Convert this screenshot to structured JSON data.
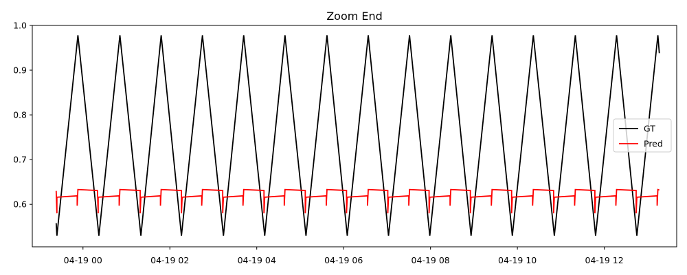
{
  "chart_data": {
    "type": "line",
    "title": "Zoom End",
    "xlabel": "",
    "ylabel": "",
    "x_axis_type": "time",
    "x_range": [
      "2024-04-18T22:50",
      "2024-04-19T13:40"
    ],
    "x_ticks": [
      {
        "time": "2024-04-19T00:00",
        "label": "04-19 00"
      },
      {
        "time": "2024-04-19T02:00",
        "label": "04-19 02"
      },
      {
        "time": "2024-04-19T04:00",
        "label": "04-19 04"
      },
      {
        "time": "2024-04-19T06:00",
        "label": "04-19 06"
      },
      {
        "time": "2024-04-19T08:00",
        "label": "04-19 08"
      },
      {
        "time": "2024-04-19T10:00",
        "label": "04-19 10"
      },
      {
        "time": "2024-04-19T12:00",
        "label": "04-19 12"
      }
    ],
    "ylim": [
      0.505,
      1.0
    ],
    "y_ticks": [
      {
        "value": 0.6,
        "label": "0.6"
      },
      {
        "value": 0.7,
        "label": "0.7"
      },
      {
        "value": 0.8,
        "label": "0.8"
      },
      {
        "value": 0.9,
        "label": "0.9"
      },
      {
        "value": 1.0,
        "label": "1.0"
      }
    ],
    "grid": false,
    "legend_position": "center-right",
    "series": [
      {
        "name": "GT",
        "color": "#000000",
        "points": [
          [
            "2024-04-18T23:23",
            0.558
          ],
          [
            "2024-04-18T23:24",
            0.53
          ],
          [
            "2024-04-18T23:53",
            0.978
          ],
          [
            "2024-04-19T00:22",
            0.53
          ],
          [
            "2024-04-19T00:51",
            0.978
          ],
          [
            "2024-04-19T01:20",
            0.53
          ],
          [
            "2024-04-19T01:48",
            0.978
          ],
          [
            "2024-04-19T02:16",
            0.53
          ],
          [
            "2024-04-19T02:45",
            0.978
          ],
          [
            "2024-04-19T03:14",
            0.53
          ],
          [
            "2024-04-19T03:42",
            0.978
          ],
          [
            "2024-04-19T04:11",
            0.53
          ],
          [
            "2024-04-19T04:39",
            0.978
          ],
          [
            "2024-04-19T05:08",
            0.53
          ],
          [
            "2024-04-19T05:37",
            0.978
          ],
          [
            "2024-04-19T06:05",
            0.53
          ],
          [
            "2024-04-19T06:34",
            0.978
          ],
          [
            "2024-04-19T07:02",
            0.53
          ],
          [
            "2024-04-19T07:31",
            0.978
          ],
          [
            "2024-04-19T07:59",
            0.53
          ],
          [
            "2024-04-19T08:28",
            0.978
          ],
          [
            "2024-04-19T08:56",
            0.53
          ],
          [
            "2024-04-19T09:25",
            0.978
          ],
          [
            "2024-04-19T09:53",
            0.53
          ],
          [
            "2024-04-19T10:22",
            0.978
          ],
          [
            "2024-04-19T10:51",
            0.53
          ],
          [
            "2024-04-19T11:20",
            0.978
          ],
          [
            "2024-04-19T11:48",
            0.53
          ],
          [
            "2024-04-19T12:17",
            0.978
          ],
          [
            "2024-04-19T12:45",
            0.53
          ],
          [
            "2024-04-19T13:14",
            0.978
          ],
          [
            "2024-04-19T13:16",
            0.938
          ]
        ]
      },
      {
        "name": "Pred",
        "color": "#ff0000",
        "points": [
          [
            "2024-04-18T23:23",
            0.63
          ],
          [
            "2024-04-18T23:24",
            0.58
          ],
          [
            "2024-04-18T23:24",
            0.616
          ],
          [
            "2024-04-18T23:52",
            0.619
          ],
          [
            "2024-04-18T23:52",
            0.597
          ],
          [
            "2024-04-18T23:53",
            0.633
          ],
          [
            "2024-04-19T00:20",
            0.631
          ],
          [
            "2024-04-19T00:21",
            0.58
          ],
          [
            "2024-04-19T00:21",
            0.616
          ],
          [
            "2024-04-19T00:50",
            0.619
          ],
          [
            "2024-04-19T00:50",
            0.597
          ],
          [
            "2024-04-19T00:51",
            0.633
          ],
          [
            "2024-04-19T01:19",
            0.631
          ],
          [
            "2024-04-19T01:19",
            0.58
          ],
          [
            "2024-04-19T01:20",
            0.616
          ],
          [
            "2024-04-19T01:47",
            0.619
          ],
          [
            "2024-04-19T01:47",
            0.597
          ],
          [
            "2024-04-19T01:48",
            0.633
          ],
          [
            "2024-04-19T02:16",
            0.631
          ],
          [
            "2024-04-19T02:16",
            0.58
          ],
          [
            "2024-04-19T02:17",
            0.616
          ],
          [
            "2024-04-19T02:44",
            0.619
          ],
          [
            "2024-04-19T02:44",
            0.597
          ],
          [
            "2024-04-19T02:45",
            0.633
          ],
          [
            "2024-04-19T03:13",
            0.631
          ],
          [
            "2024-04-19T03:13",
            0.58
          ],
          [
            "2024-04-19T03:14",
            0.616
          ],
          [
            "2024-04-19T03:41",
            0.619
          ],
          [
            "2024-04-19T03:41",
            0.597
          ],
          [
            "2024-04-19T03:42",
            0.633
          ],
          [
            "2024-04-19T04:10",
            0.631
          ],
          [
            "2024-04-19T04:10",
            0.58
          ],
          [
            "2024-04-19T04:11",
            0.616
          ],
          [
            "2024-04-19T04:38",
            0.619
          ],
          [
            "2024-04-19T04:38",
            0.597
          ],
          [
            "2024-04-19T04:39",
            0.633
          ],
          [
            "2024-04-19T05:07",
            0.631
          ],
          [
            "2024-04-19T05:07",
            0.58
          ],
          [
            "2024-04-19T05:08",
            0.616
          ],
          [
            "2024-04-19T05:36",
            0.619
          ],
          [
            "2024-04-19T05:36",
            0.597
          ],
          [
            "2024-04-19T05:37",
            0.633
          ],
          [
            "2024-04-19T06:04",
            0.631
          ],
          [
            "2024-04-19T06:04",
            0.58
          ],
          [
            "2024-04-19T06:05",
            0.616
          ],
          [
            "2024-04-19T06:33",
            0.619
          ],
          [
            "2024-04-19T06:33",
            0.597
          ],
          [
            "2024-04-19T06:34",
            0.633
          ],
          [
            "2024-04-19T07:01",
            0.631
          ],
          [
            "2024-04-19T07:01",
            0.58
          ],
          [
            "2024-04-19T07:02",
            0.616
          ],
          [
            "2024-04-19T07:30",
            0.619
          ],
          [
            "2024-04-19T07:30",
            0.597
          ],
          [
            "2024-04-19T07:31",
            0.633
          ],
          [
            "2024-04-19T07:58",
            0.631
          ],
          [
            "2024-04-19T07:58",
            0.58
          ],
          [
            "2024-04-19T07:59",
            0.616
          ],
          [
            "2024-04-19T08:27",
            0.619
          ],
          [
            "2024-04-19T08:27",
            0.597
          ],
          [
            "2024-04-19T08:28",
            0.633
          ],
          [
            "2024-04-19T08:55",
            0.631
          ],
          [
            "2024-04-19T08:55",
            0.58
          ],
          [
            "2024-04-19T08:56",
            0.616
          ],
          [
            "2024-04-19T09:24",
            0.619
          ],
          [
            "2024-04-19T09:24",
            0.597
          ],
          [
            "2024-04-19T09:25",
            0.633
          ],
          [
            "2024-04-19T09:52",
            0.631
          ],
          [
            "2024-04-19T09:52",
            0.58
          ],
          [
            "2024-04-19T09:53",
            0.616
          ],
          [
            "2024-04-19T10:21",
            0.619
          ],
          [
            "2024-04-19T10:21",
            0.597
          ],
          [
            "2024-04-19T10:22",
            0.633
          ],
          [
            "2024-04-19T10:50",
            0.631
          ],
          [
            "2024-04-19T10:50",
            0.58
          ],
          [
            "2024-04-19T10:51",
            0.616
          ],
          [
            "2024-04-19T11:19",
            0.619
          ],
          [
            "2024-04-19T11:19",
            0.597
          ],
          [
            "2024-04-19T11:20",
            0.633
          ],
          [
            "2024-04-19T11:47",
            0.631
          ],
          [
            "2024-04-19T11:47",
            0.58
          ],
          [
            "2024-04-19T11:48",
            0.616
          ],
          [
            "2024-04-19T12:16",
            0.619
          ],
          [
            "2024-04-19T12:16",
            0.597
          ],
          [
            "2024-04-19T12:17",
            0.633
          ],
          [
            "2024-04-19T12:44",
            0.631
          ],
          [
            "2024-04-19T12:44",
            0.58
          ],
          [
            "2024-04-19T12:45",
            0.616
          ],
          [
            "2024-04-19T13:13",
            0.619
          ],
          [
            "2024-04-19T13:13",
            0.597
          ],
          [
            "2024-04-19T13:14",
            0.633
          ],
          [
            "2024-04-19T13:16",
            0.632
          ]
        ]
      }
    ]
  }
}
